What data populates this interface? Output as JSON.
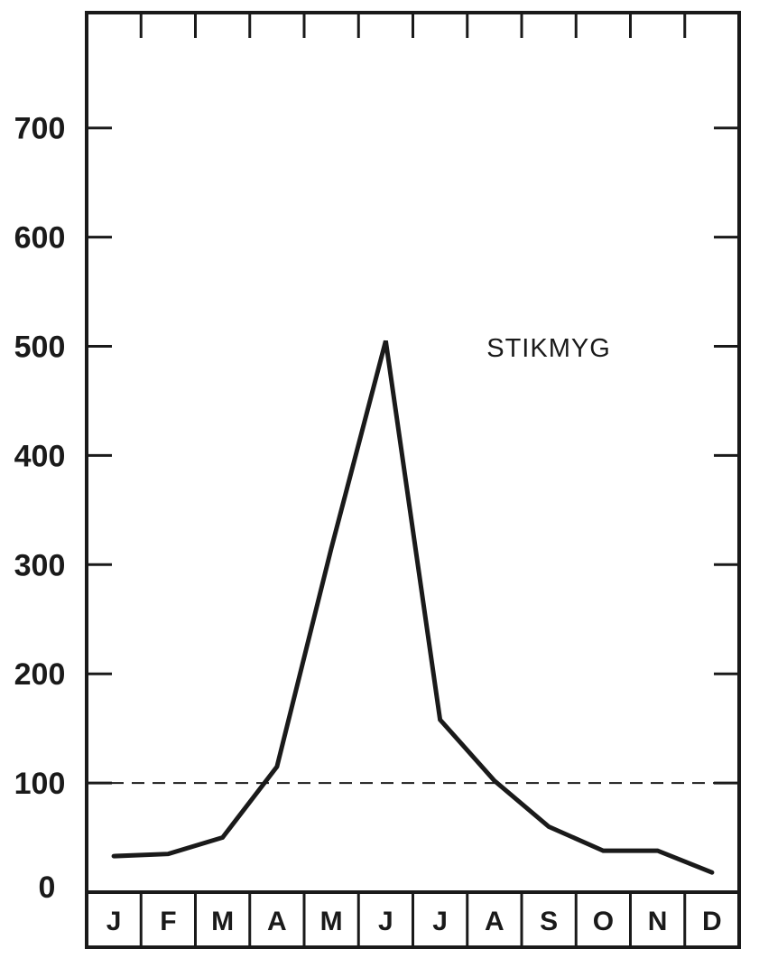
{
  "chart_data": {
    "type": "line",
    "categories": [
      "J",
      "F",
      "M",
      "A",
      "M",
      "J",
      "J",
      "A",
      "S",
      "O",
      "N",
      "D"
    ],
    "series": [
      {
        "name": "STIKMYG",
        "values": [
          33,
          35,
          50,
          115,
          315,
          505,
          158,
          102,
          60,
          38,
          38,
          18
        ]
      }
    ],
    "reference_line": {
      "value": 100,
      "style": "dashed"
    },
    "yticks": [
      0,
      100,
      200,
      300,
      400,
      500,
      600,
      700
    ],
    "ylim": [
      0,
      810
    ],
    "grid": false,
    "title": "",
    "xlabel": "",
    "ylabel": "",
    "line_color": "#1a1a1a"
  }
}
